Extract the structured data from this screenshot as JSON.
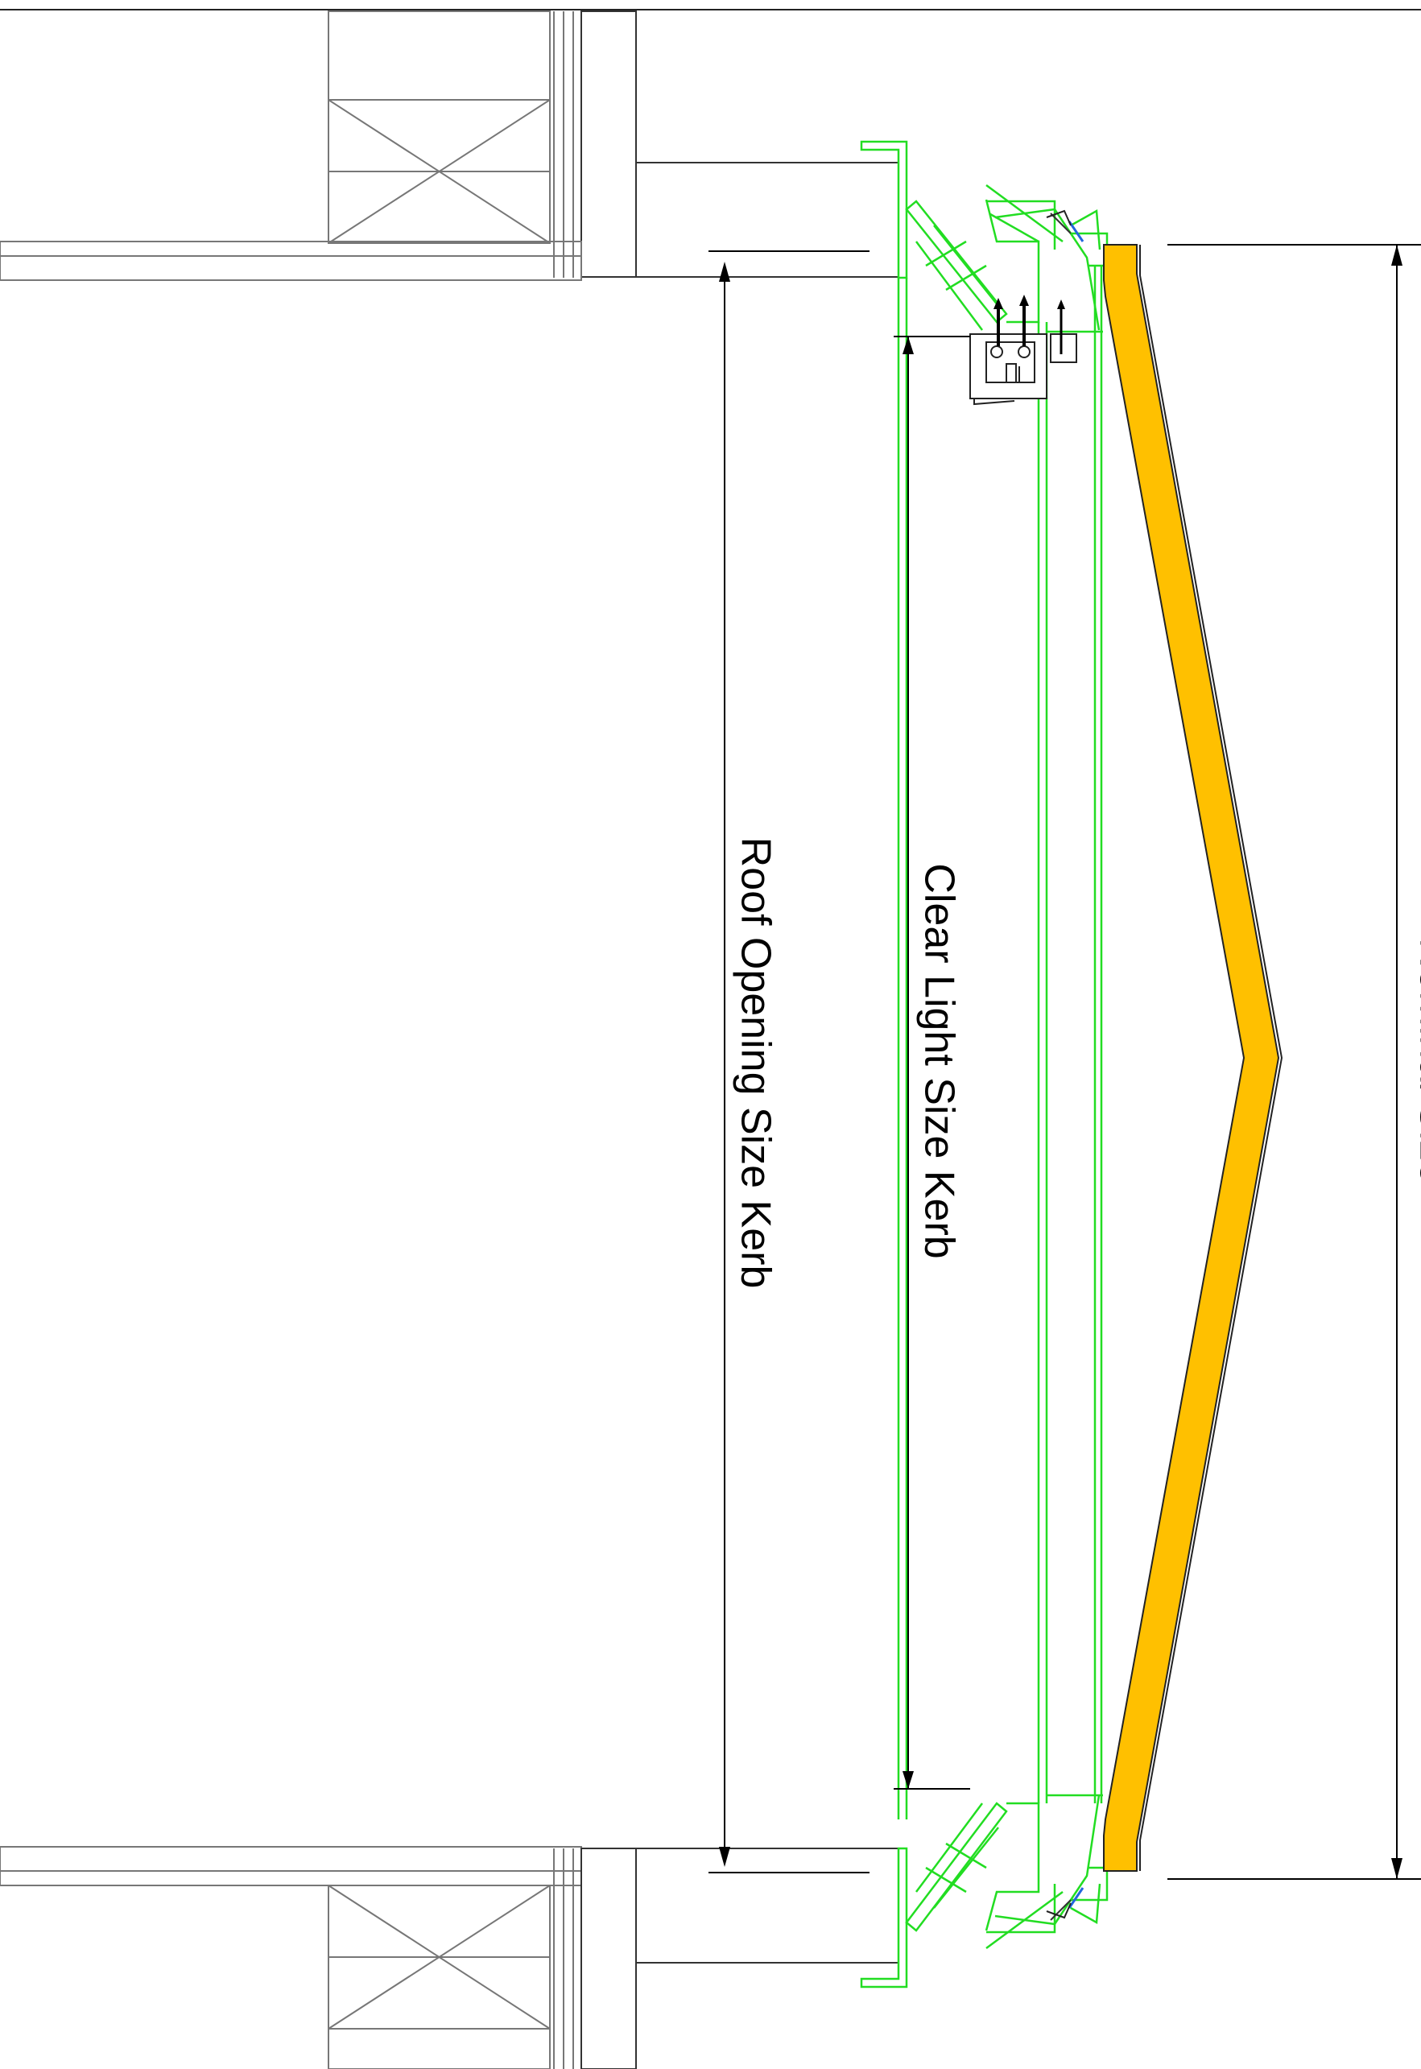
{
  "labels": {
    "roof_opening": "Roof Opening Size Kerb",
    "clear_light": "Clear Light Size Kerb",
    "nominal": "Nominal Size"
  },
  "colors": {
    "glazing_fill": "#ffc000",
    "frame_green": "#22dd22",
    "line_grey": "#777777",
    "background": "#ffffff"
  }
}
